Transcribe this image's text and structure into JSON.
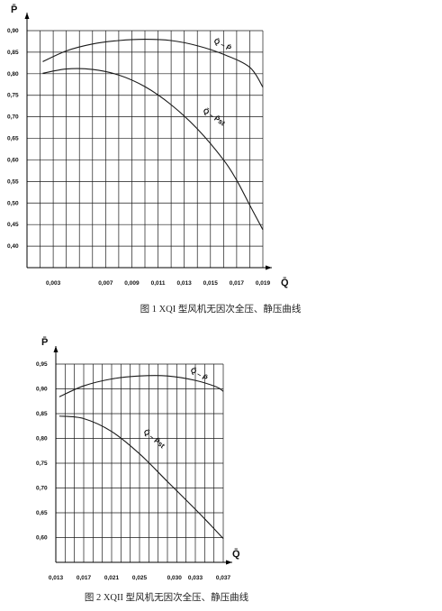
{
  "chart_data": [
    {
      "type": "line",
      "caption": "图 1  XQI 型风机无因次全压、静压曲线",
      "xlabel": "Q̄",
      "ylabel": "P̄",
      "xlim": [
        0.001,
        0.019
      ],
      "ylim": [
        0.35,
        0.9
      ],
      "x_ticks": [
        0.003,
        0.007,
        0.009,
        0.011,
        0.013,
        0.015,
        0.017,
        0.019
      ],
      "x_tick_labels": [
        "0,003",
        "0,007",
        "0,009",
        "0,011",
        "0,013",
        "0,015",
        "0,017",
        "0,019"
      ],
      "y_ticks": [
        0.4,
        0.45,
        0.5,
        0.55,
        0.6,
        0.65,
        0.7,
        0.75,
        0.8,
        0.85,
        0.9
      ],
      "y_tick_labels": [
        "0,40",
        "0,45",
        "0,50",
        "0,55",
        "0,60",
        "0,65",
        "0,70",
        "0,75",
        "0,80",
        "0,85",
        "0,90"
      ],
      "grid": true,
      "series": [
        {
          "name": "Q̄ – P̄",
          "x": [
            0.0022,
            0.004,
            0.006,
            0.008,
            0.01,
            0.012,
            0.014,
            0.016,
            0.018,
            0.019
          ],
          "y": [
            0.828,
            0.853,
            0.869,
            0.877,
            0.88,
            0.877,
            0.865,
            0.845,
            0.815,
            0.769
          ]
        },
        {
          "name": "Q̄ – P̄st",
          "x": [
            0.0022,
            0.004,
            0.006,
            0.008,
            0.01,
            0.012,
            0.014,
            0.016,
            0.017,
            0.018,
            0.019
          ],
          "y": [
            0.801,
            0.811,
            0.81,
            0.797,
            0.77,
            0.728,
            0.672,
            0.6,
            0.553,
            0.495,
            0.438
          ]
        }
      ]
    },
    {
      "type": "line",
      "caption": "图 2  XQII 型风机无因次全压、静压曲线",
      "xlabel": "Q̄",
      "ylabel": "P̄",
      "xlim": [
        0.013,
        0.037
      ],
      "ylim": [
        0.55,
        0.95
      ],
      "x_ticks": [
        0.013,
        0.017,
        0.021,
        0.025,
        0.03,
        0.033,
        0.037
      ],
      "x_tick_labels": [
        "0,013",
        "0,017",
        "0,021",
        "0,025",
        "0,030",
        "0,033",
        "0,037"
      ],
      "y_ticks": [
        0.6,
        0.65,
        0.7,
        0.75,
        0.8,
        0.85,
        0.9,
        0.95
      ],
      "y_tick_labels": [
        "0,60",
        "0,65",
        "0,70",
        "0,75",
        "0,80",
        "0,85",
        "0,90",
        "0,95"
      ],
      "grid": true,
      "series": [
        {
          "name": "Q̄ – P̄",
          "x": [
            0.0135,
            0.017,
            0.021,
            0.025,
            0.029,
            0.033,
            0.036,
            0.037
          ],
          "y": [
            0.884,
            0.906,
            0.92,
            0.926,
            0.926,
            0.917,
            0.904,
            0.895
          ]
        },
        {
          "name": "Q̄ – P̄st",
          "x": [
            0.0135,
            0.017,
            0.021,
            0.025,
            0.029,
            0.033,
            0.035,
            0.037
          ],
          "y": [
            0.845,
            0.84,
            0.814,
            0.769,
            0.713,
            0.657,
            0.628,
            0.598
          ]
        }
      ]
    }
  ]
}
